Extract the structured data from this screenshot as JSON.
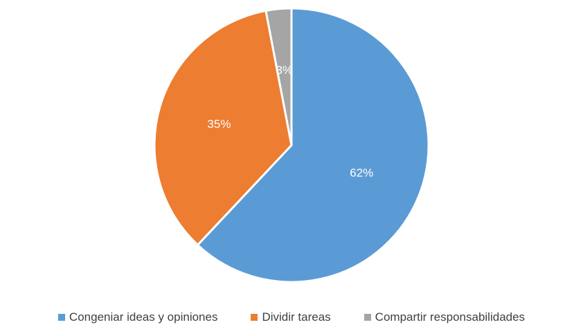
{
  "chart_data": {
    "type": "pie",
    "categories": [
      "Congeniar ideas y opiniones",
      "Dividir tareas",
      "Compartir responsabilidades"
    ],
    "values": [
      62,
      35,
      3
    ],
    "data_labels": [
      "62%",
      "35%",
      "3%"
    ],
    "colors": [
      "#5b9bd5",
      "#ed7d31",
      "#a5a5a5"
    ],
    "legend_position": "bottom",
    "start_angle": "top",
    "direction": "clockwise"
  }
}
